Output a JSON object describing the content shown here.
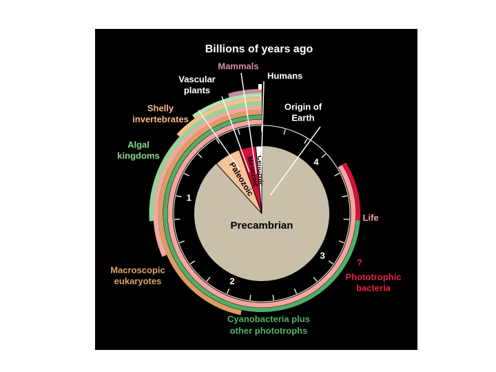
{
  "title": "Billions of years ago",
  "scale_labels": [
    "1",
    "2",
    "3",
    "4"
  ],
  "eras": {
    "precambrian": "Precambrian",
    "paleozoic": "Paleozoic",
    "mesozoic": "Mesozoic",
    "cenozoic": "Cenozoic"
  },
  "events": {
    "mammals": [
      "Mammals"
    ],
    "humans": [
      "Humans"
    ],
    "vascular_plants": [
      "Vascular",
      "plants"
    ],
    "origin_of_earth": [
      "Origin of",
      "Earth"
    ],
    "shelly_invertebrates": [
      "Shelly",
      "invertebrates"
    ],
    "algal_kingdoms": [
      "Algal",
      "kingdoms"
    ],
    "life": [
      "Life"
    ],
    "phototrophic_bacteria": [
      "?",
      "Phototrophic",
      "bacteria"
    ],
    "macroscopic_eukaryotes": [
      "Macroscopic",
      "eukaryotes"
    ],
    "cyanobacteria": [
      "Cyanobacteria plus",
      "other phototrophs"
    ]
  }
}
